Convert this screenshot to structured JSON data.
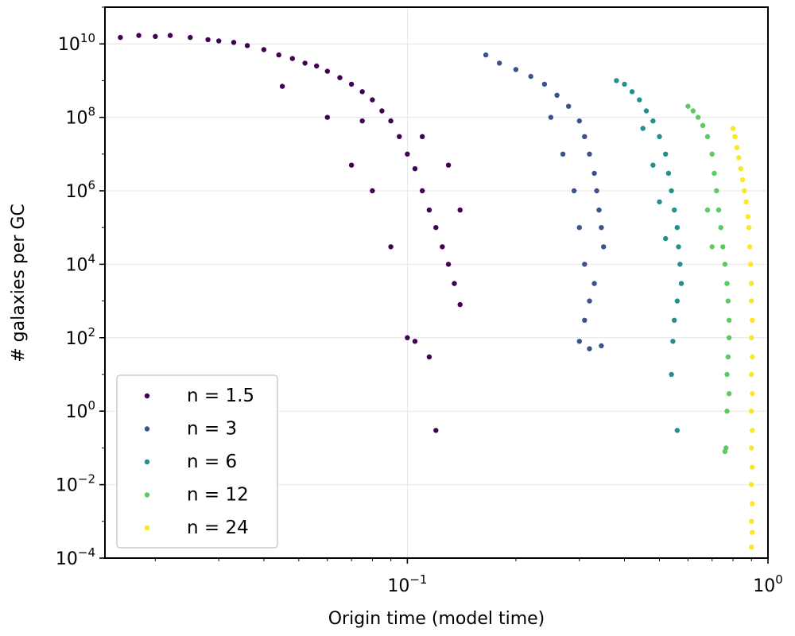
{
  "chart_data": {
    "type": "scatter",
    "title": "",
    "xlabel": "Origin time (model time)",
    "ylabel": "# galaxies per GC",
    "xscale": "log",
    "yscale": "log",
    "xlim": [
      0.0145,
      1.0
    ],
    "ylim": [
      0.0001,
      100000000000
    ],
    "x_ticks": [
      {
        "value": 0.1,
        "base": "10",
        "exp": "−1"
      },
      {
        "value": 1.0,
        "base": "10",
        "exp": "0"
      }
    ],
    "y_ticks": [
      {
        "value": 0.0001,
        "base": "10",
        "exp": "−4"
      },
      {
        "value": 0.01,
        "base": "10",
        "exp": "−2"
      },
      {
        "value": 1,
        "base": "10",
        "exp": "0"
      },
      {
        "value": 100,
        "base": "10",
        "exp": "2"
      },
      {
        "value": 10000,
        "base": "10",
        "exp": "4"
      },
      {
        "value": 1000000,
        "base": "10",
        "exp": "6"
      },
      {
        "value": 100000000,
        "base": "10",
        "exp": "8"
      },
      {
        "value": 10000000000,
        "base": "10",
        "exp": "10"
      }
    ],
    "grid": true,
    "legend_position": "lower-left",
    "series": [
      {
        "name": "n = 1.5",
        "color": "#440154",
        "points": [
          [
            0.016,
            15000000000.0
          ],
          [
            0.018,
            17000000000.0
          ],
          [
            0.02,
            16000000000.0
          ],
          [
            0.022,
            17000000000.0
          ],
          [
            0.025,
            15000000000.0
          ],
          [
            0.028,
            13000000000.0
          ],
          [
            0.03,
            12000000000.0
          ],
          [
            0.033,
            11000000000.0
          ],
          [
            0.036,
            9000000000.0
          ],
          [
            0.04,
            7000000000.0
          ],
          [
            0.044,
            5000000000.0
          ],
          [
            0.048,
            4000000000.0
          ],
          [
            0.052,
            3000000000.0
          ],
          [
            0.056,
            2500000000.0
          ],
          [
            0.06,
            1800000000.0
          ],
          [
            0.065,
            1200000000.0
          ],
          [
            0.07,
            800000000.0
          ],
          [
            0.075,
            500000000.0
          ],
          [
            0.08,
            300000000.0
          ],
          [
            0.085,
            150000000.0
          ],
          [
            0.09,
            80000000.0
          ],
          [
            0.095,
            30000000.0
          ],
          [
            0.1,
            10000000.0
          ],
          [
            0.105,
            4000000.0
          ],
          [
            0.11,
            1000000.0
          ],
          [
            0.115,
            300000.0
          ],
          [
            0.12,
            100000.0
          ],
          [
            0.125,
            30000.0
          ],
          [
            0.13,
            10000.0
          ],
          [
            0.135,
            3000.0
          ],
          [
            0.14,
            800
          ],
          [
            0.045,
            700000000.0
          ],
          [
            0.07,
            5000000.0
          ],
          [
            0.08,
            1000000.0
          ],
          [
            0.1,
            100
          ],
          [
            0.115,
            30
          ],
          [
            0.105,
            80
          ],
          [
            0.12,
            0.3
          ],
          [
            0.09,
            30000.0
          ],
          [
            0.14,
            300000.0
          ],
          [
            0.13,
            5000000.0
          ],
          [
            0.11,
            30000000.0
          ],
          [
            0.06,
            100000000.0
          ],
          [
            0.075,
            80000000.0
          ]
        ]
      },
      {
        "name": "n = 3",
        "color": "#3b528b",
        "points": [
          [
            0.165,
            5000000000.0
          ],
          [
            0.18,
            3000000000.0
          ],
          [
            0.2,
            2000000000.0
          ],
          [
            0.22,
            1300000000.0
          ],
          [
            0.24,
            800000000.0
          ],
          [
            0.26,
            400000000.0
          ],
          [
            0.28,
            200000000.0
          ],
          [
            0.3,
            80000000.0
          ],
          [
            0.31,
            30000000.0
          ],
          [
            0.32,
            10000000.0
          ],
          [
            0.33,
            3000000.0
          ],
          [
            0.335,
            1000000.0
          ],
          [
            0.34,
            300000.0
          ],
          [
            0.345,
            100000.0
          ],
          [
            0.35,
            30000.0
          ],
          [
            0.33,
            3000.0
          ],
          [
            0.32,
            1000.0
          ],
          [
            0.31,
            300
          ],
          [
            0.3,
            80
          ],
          [
            0.32,
            50
          ],
          [
            0.345,
            60
          ],
          [
            0.25,
            100000000.0
          ],
          [
            0.27,
            10000000.0
          ],
          [
            0.29,
            1000000.0
          ],
          [
            0.3,
            100000.0
          ],
          [
            0.31,
            10000.0
          ]
        ]
      },
      {
        "name": "n = 6",
        "color": "#21918c",
        "points": [
          [
            0.38,
            1000000000.0
          ],
          [
            0.4,
            800000000.0
          ],
          [
            0.42,
            500000000.0
          ],
          [
            0.44,
            300000000.0
          ],
          [
            0.46,
            150000000.0
          ],
          [
            0.48,
            80000000.0
          ],
          [
            0.5,
            30000000.0
          ],
          [
            0.52,
            10000000.0
          ],
          [
            0.53,
            3000000.0
          ],
          [
            0.54,
            1000000.0
          ],
          [
            0.55,
            300000.0
          ],
          [
            0.56,
            100000.0
          ],
          [
            0.565,
            30000.0
          ],
          [
            0.57,
            10000.0
          ],
          [
            0.575,
            3000.0
          ],
          [
            0.56,
            1000.0
          ],
          [
            0.55,
            300
          ],
          [
            0.545,
            80
          ],
          [
            0.54,
            10
          ],
          [
            0.56,
            0.3
          ],
          [
            0.45,
            50000000.0
          ],
          [
            0.48,
            5000000.0
          ],
          [
            0.5,
            500000.0
          ],
          [
            0.52,
            50000.0
          ]
        ]
      },
      {
        "name": "n = 12",
        "color": "#5ec962",
        "points": [
          [
            0.6,
            200000000.0
          ],
          [
            0.62,
            150000000.0
          ],
          [
            0.64,
            100000000.0
          ],
          [
            0.66,
            60000000.0
          ],
          [
            0.68,
            30000000.0
          ],
          [
            0.7,
            10000000.0
          ],
          [
            0.71,
            3000000.0
          ],
          [
            0.72,
            1000000.0
          ],
          [
            0.73,
            300000.0
          ],
          [
            0.74,
            100000.0
          ],
          [
            0.75,
            30000.0
          ],
          [
            0.76,
            10000.0
          ],
          [
            0.77,
            3000.0
          ],
          [
            0.775,
            1000.0
          ],
          [
            0.78,
            300
          ],
          [
            0.78,
            100
          ],
          [
            0.775,
            30
          ],
          [
            0.77,
            10
          ],
          [
            0.78,
            3
          ],
          [
            0.77,
            1
          ],
          [
            0.765,
            0.1
          ],
          [
            0.76,
            0.08
          ],
          [
            0.68,
            300000.0
          ],
          [
            0.7,
            30000.0
          ]
        ]
      },
      {
        "name": "n = 24",
        "color": "#fde725",
        "points": [
          [
            0.8,
            50000000.0
          ],
          [
            0.81,
            30000000.0
          ],
          [
            0.82,
            15000000.0
          ],
          [
            0.83,
            8000000.0
          ],
          [
            0.84,
            4000000.0
          ],
          [
            0.85,
            2000000.0
          ],
          [
            0.86,
            1000000.0
          ],
          [
            0.87,
            500000.0
          ],
          [
            0.88,
            200000.0
          ],
          [
            0.885,
            100000.0
          ],
          [
            0.89,
            30000.0
          ],
          [
            0.895,
            10000.0
          ],
          [
            0.9,
            3000.0
          ],
          [
            0.9,
            1000.0
          ],
          [
            0.905,
            300
          ],
          [
            0.9,
            100
          ],
          [
            0.905,
            30
          ],
          [
            0.9,
            10
          ],
          [
            0.905,
            3
          ],
          [
            0.9,
            1
          ],
          [
            0.905,
            0.3
          ],
          [
            0.9,
            0.1
          ],
          [
            0.905,
            0.03
          ],
          [
            0.9,
            0.01
          ],
          [
            0.905,
            0.003
          ],
          [
            0.9,
            0.001
          ],
          [
            0.905,
            0.0005
          ],
          [
            0.9,
            0.0002
          ]
        ]
      }
    ]
  }
}
